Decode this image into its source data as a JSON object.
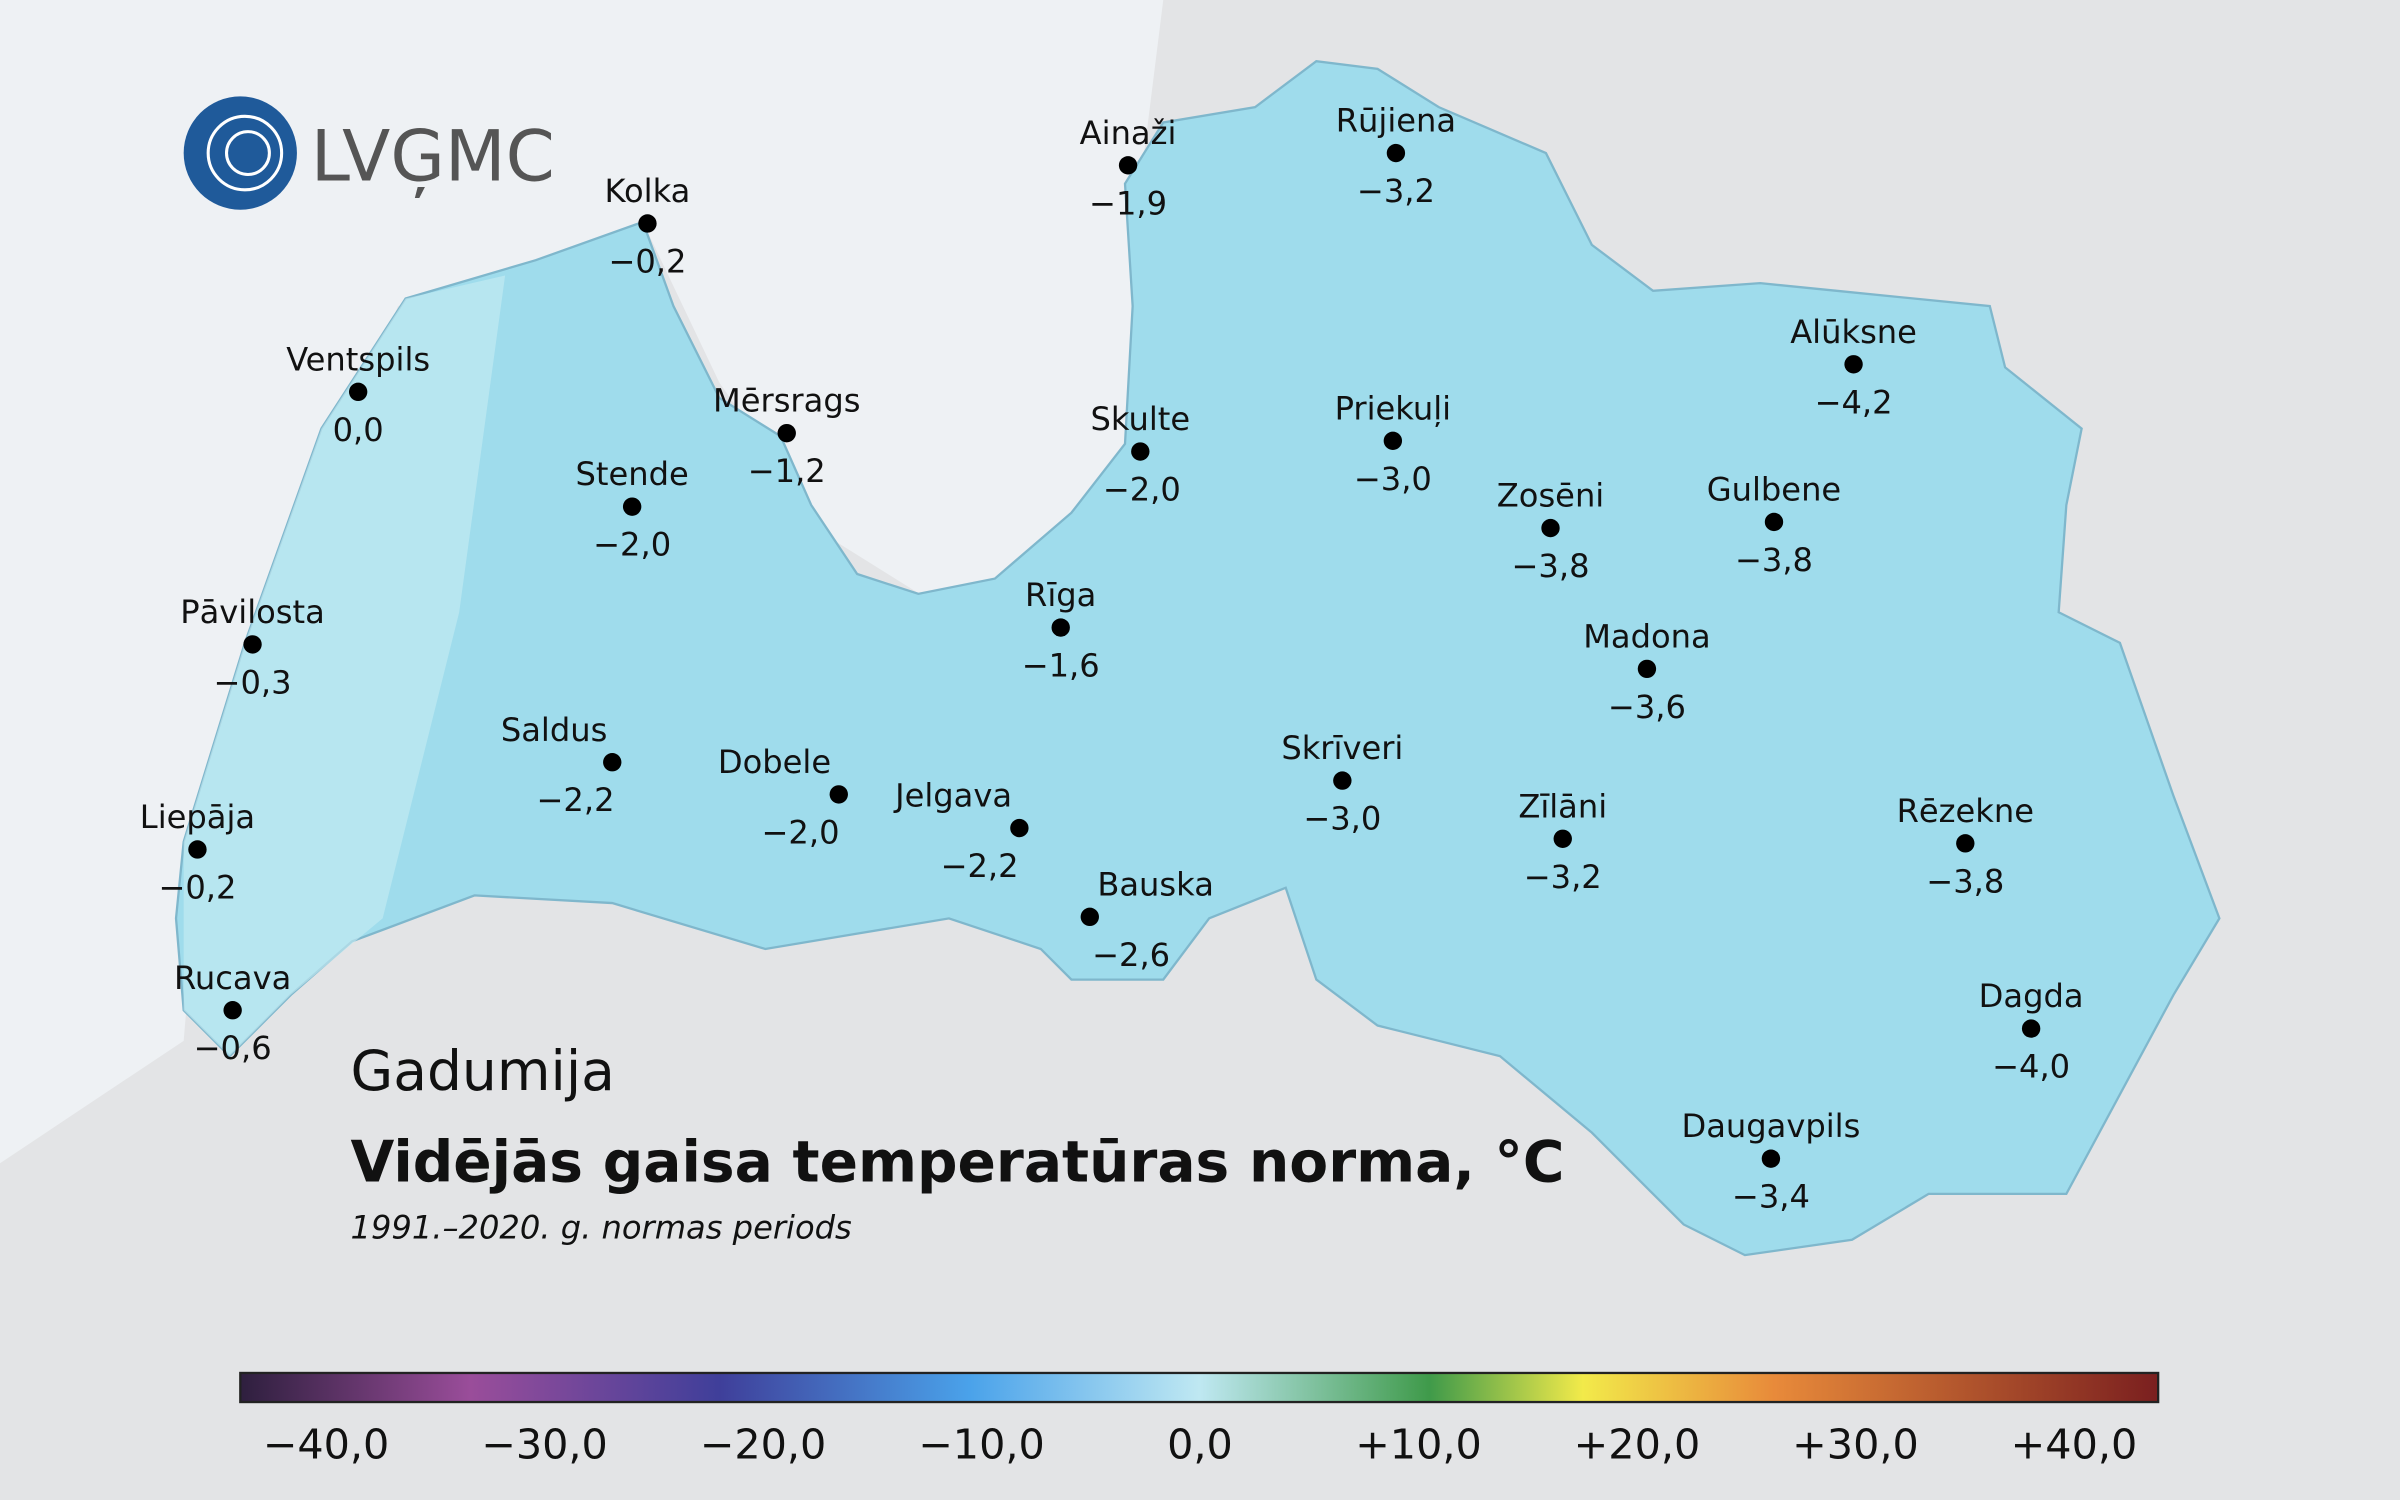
{
  "logo": "LVĢMC",
  "stations": [
    {
      "name": "Kolka",
      "value": "−0,2"
    },
    {
      "name": "Ventspils",
      "value": "0,0"
    },
    {
      "name": "Mērsrags",
      "value": "−1,2"
    },
    {
      "name": "Stende",
      "value": "−2,0"
    },
    {
      "name": "Pāvilosta",
      "value": "−0,3"
    },
    {
      "name": "Saldus",
      "value": "−2,2"
    },
    {
      "name": "Dobele",
      "value": "−2,0"
    },
    {
      "name": "Jelgava",
      "value": "−2,2"
    },
    {
      "name": "Bauska",
      "value": "−2,6"
    },
    {
      "name": "Rīga",
      "value": "−1,6"
    },
    {
      "name": "Skulte",
      "value": "−2,0"
    },
    {
      "name": "Ainaži",
      "value": "−1,9"
    },
    {
      "name": "Rūjiena",
      "value": "−3,2"
    },
    {
      "name": "Priekuļi",
      "value": "−3,0"
    },
    {
      "name": "Alūksne",
      "value": "−4,2"
    },
    {
      "name": "Zosēni",
      "value": "−3,8"
    },
    {
      "name": "Gulbene",
      "value": "−3,8"
    },
    {
      "name": "Madona",
      "value": "−3,6"
    },
    {
      "name": "Skrīveri",
      "value": "−3,0"
    },
    {
      "name": "Zīlāni",
      "value": "−3,2"
    },
    {
      "name": "Rēzekne",
      "value": "−3,8"
    },
    {
      "name": "Dagda",
      "value": "−4,0"
    },
    {
      "name": "Daugavpils",
      "value": "−3,4"
    },
    {
      "name": "Liepāja",
      "value": "−0,2"
    },
    {
      "name": "Rucava",
      "value": "−0,6"
    }
  ],
  "title": {
    "region": "Gadumija",
    "main": "Vidējās gaisa temperatūras norma, °C",
    "period": "1991.–2020. g. normas periods"
  },
  "colorbar": {
    "ticks": [
      "−40,0",
      "−30,0",
      "−20,0",
      "−10,0",
      "0,0",
      "+10,0",
      "+20,0",
      "+30,0",
      "+40,0"
    ]
  }
}
